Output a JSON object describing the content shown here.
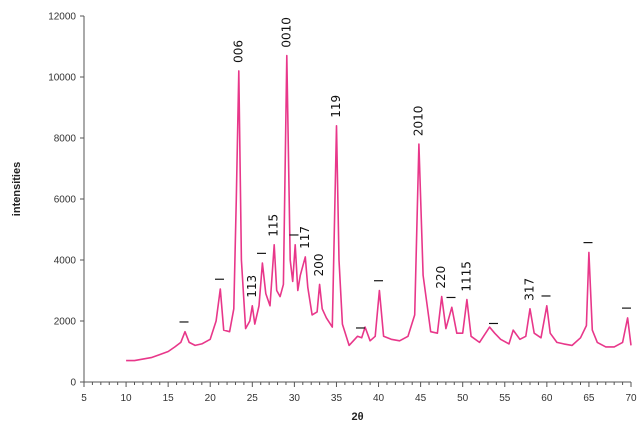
{
  "chart_data": {
    "type": "line",
    "title": "",
    "xlabel": "2θ",
    "ylabel": "intensities",
    "xlim": [
      5,
      70
    ],
    "ylim": [
      0,
      12000
    ],
    "grid": false,
    "legend": "none",
    "colors": {
      "line": "#e8378a",
      "axis": "#555555"
    },
    "x_ticks": [
      5,
      10,
      15,
      20,
      25,
      30,
      35,
      40,
      45,
      50,
      55,
      60,
      65,
      70
    ],
    "y_ticks": [
      0,
      2000,
      4000,
      6000,
      8000,
      10000,
      12000
    ],
    "series": [
      {
        "x": [
          10,
          11,
          12,
          13,
          14,
          15,
          15.8,
          16.5,
          17.0,
          17.5,
          18.2,
          19,
          20,
          20.7,
          21.2,
          21.6,
          22.3,
          22.8,
          23.1,
          23.4,
          23.7,
          24.2,
          24.7,
          25.0,
          25.3,
          25.8,
          26.2,
          26.6,
          27.1,
          27.6,
          27.9,
          28.3,
          28.7,
          29.1,
          29.5,
          29.8,
          30.1,
          30.4,
          30.7,
          31.0,
          31.3,
          31.6,
          32.1,
          32.7,
          33.0,
          33.3,
          33.8,
          34.5,
          35.0,
          35.3,
          35.7,
          36.5,
          37.5,
          38.0,
          38.4,
          39.0,
          39.6,
          40.1,
          40.6,
          41.5,
          42.5,
          43.5,
          44.3,
          44.8,
          45.3,
          46.2,
          47.0,
          47.5,
          48.0,
          48.7,
          49.3,
          50.0,
          50.5,
          51.0,
          52.0,
          53.2,
          53.8,
          54.5,
          55.5,
          56.0,
          56.8,
          57.5,
          58.0,
          58.5,
          59.3,
          60.0,
          60.4,
          61.2,
          62.0,
          63.0,
          64.0,
          64.7,
          65.0,
          65.4,
          66.0,
          67.0,
          68.0,
          69.0,
          69.6,
          70.0
        ],
        "y": [
          700,
          700,
          750,
          800,
          900,
          1000,
          1150,
          1300,
          1650,
          1300,
          1200,
          1250,
          1400,
          2000,
          3050,
          1700,
          1650,
          2400,
          6000,
          10200,
          4000,
          1750,
          2000,
          2500,
          1900,
          2500,
          3900,
          2900,
          2500,
          4500,
          3000,
          2800,
          3200,
          10700,
          4000,
          3300,
          4500,
          3000,
          3500,
          3800,
          4100,
          3100,
          2200,
          2300,
          3200,
          2400,
          2100,
          1800,
          8400,
          4000,
          1900,
          1200,
          1500,
          1450,
          1800,
          1350,
          1500,
          3000,
          1500,
          1400,
          1350,
          1500,
          2200,
          7800,
          3500,
          1650,
          1600,
          2800,
          1750,
          2450,
          1600,
          1600,
          2700,
          1500,
          1300,
          1800,
          1600,
          1400,
          1250,
          1700,
          1400,
          1500,
          2400,
          1600,
          1450,
          2500,
          1600,
          1300,
          1250,
          1200,
          1450,
          1850,
          4250,
          1700,
          1300,
          1150,
          1150,
          1300,
          2100,
          1200
        ]
      }
    ],
    "annotations": [
      {
        "text": "I",
        "x": 17.0,
        "y": 1650
      },
      {
        "text": "I",
        "x": 21.2,
        "y": 3050
      },
      {
        "text": "006",
        "x": 23.4,
        "y": 10200
      },
      {
        "text": "113",
        "x": 25.0,
        "y": 2500
      },
      {
        "text": "I",
        "x": 26.2,
        "y": 3900
      },
      {
        "text": "115",
        "x": 27.6,
        "y": 4500
      },
      {
        "text": "0010",
        "x": 29.1,
        "y": 10700
      },
      {
        "text": "I",
        "x": 30.1,
        "y": 4500
      },
      {
        "text": "117",
        "x": 31.3,
        "y": 4100
      },
      {
        "text": "200",
        "x": 33.0,
        "y": 3200
      },
      {
        "text": "119",
        "x": 35.0,
        "y": 8400
      },
      {
        "text": "I",
        "x": 38.0,
        "y": 1450
      },
      {
        "text": "I",
        "x": 40.1,
        "y": 3000
      },
      {
        "text": "2010",
        "x": 44.8,
        "y": 7800
      },
      {
        "text": "220",
        "x": 47.5,
        "y": 2800
      },
      {
        "text": "I",
        "x": 48.7,
        "y": 2450
      },
      {
        "text": "1115",
        "x": 50.5,
        "y": 2700
      },
      {
        "text": "I",
        "x": 53.8,
        "y": 1600
      },
      {
        "text": "317",
        "x": 58.0,
        "y": 2400
      },
      {
        "text": "I",
        "x": 60.0,
        "y": 2500
      },
      {
        "text": "I",
        "x": 65.0,
        "y": 4250
      },
      {
        "text": "I",
        "x": 69.6,
        "y": 2100
      }
    ]
  }
}
